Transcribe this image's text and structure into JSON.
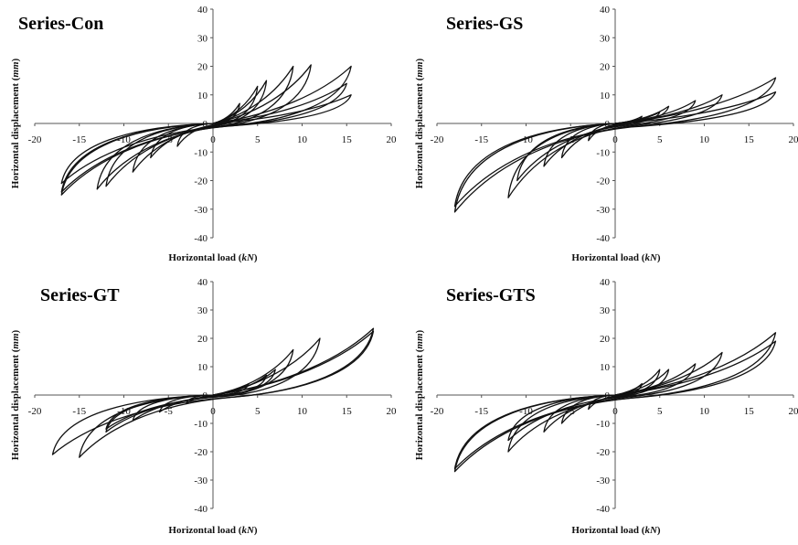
{
  "panels": [
    {
      "title": "Series-Con",
      "xlabel_main": "Horizontal load (",
      "xlabel_unit": "kN",
      "xlabel_end": ")",
      "ylabel_main": "Horizontal displacement (",
      "ylabel_unit": "mm",
      "ylabel_end": ")"
    },
    {
      "title": "Series-GS",
      "xlabel_main": "Horizontal load (",
      "xlabel_unit": "kN",
      "xlabel_end": ")",
      "ylabel_main": "Horizontal displacement (",
      "ylabel_unit": "mm",
      "ylabel_end": ")"
    },
    {
      "title": "Series-GT",
      "xlabel_main": "Horizontal load (",
      "xlabel_unit": "kN",
      "xlabel_end": ")",
      "ylabel_main": "Horizontal displacement (",
      "ylabel_unit": "mm",
      "ylabel_end": ")"
    },
    {
      "title": "Series-GTS",
      "xlabel_main": "Horizontal load (",
      "xlabel_unit": "kN",
      "xlabel_end": ")",
      "ylabel_main": "Horizontal displacement (",
      "ylabel_unit": "mm",
      "ylabel_end": ")"
    }
  ],
  "chart_data": [
    {
      "type": "line",
      "title": "Series-Con",
      "xlabel": "Horizontal load (kN)",
      "ylabel": "Horizontal displacement (mm)",
      "xlim": [
        -20,
        20
      ],
      "ylim": [
        -40,
        40
      ],
      "xticks": [
        "-20",
        "-15",
        "-10",
        "-5",
        "0",
        "5",
        "10",
        "15",
        "20"
      ],
      "yticks": [
        "-40",
        "-30",
        "-20",
        "-10",
        "0",
        "10",
        "20",
        "30",
        "40"
      ],
      "line_color": "#111111",
      "loops": [
        {
          "peak_pos": [
            3,
            7
          ],
          "peak_neg": [
            -4,
            -8
          ]
        },
        {
          "peak_pos": [
            5,
            13
          ],
          "peak_neg": [
            -7,
            -12
          ]
        },
        {
          "peak_pos": [
            6,
            15
          ],
          "peak_neg": [
            -9,
            -17
          ]
        },
        {
          "peak_pos": [
            9,
            20
          ],
          "peak_neg": [
            -12,
            -22
          ]
        },
        {
          "peak_pos": [
            11,
            20.5
          ],
          "peak_neg": [
            -13,
            -23
          ]
        },
        {
          "peak_pos": [
            15.5,
            20
          ],
          "peak_neg": [
            -17,
            -21
          ]
        },
        {
          "peak_pos": [
            15.5,
            10
          ],
          "peak_neg": [
            -17,
            -24
          ]
        },
        {
          "peak_pos": [
            15,
            14
          ],
          "peak_neg": [
            -17,
            -25
          ]
        }
      ]
    },
    {
      "type": "line",
      "title": "Series-GS",
      "xlabel": "Horizontal load (kN)",
      "ylabel": "Horizontal displacement (mm)",
      "xlim": [
        -20,
        20
      ],
      "ylim": [
        -40,
        40
      ],
      "xticks": [
        "-20",
        "-15",
        "-10",
        "-5",
        "0",
        "5",
        "10",
        "15",
        "20"
      ],
      "yticks": [
        "-40",
        "-30",
        "-20",
        "-10",
        "0",
        "10",
        "20",
        "30",
        "40"
      ],
      "line_color": "#111111",
      "loops": [
        {
          "peak_pos": [
            3,
            2.5
          ],
          "peak_neg": [
            -3,
            -6
          ]
        },
        {
          "peak_pos": [
            5,
            4
          ],
          "peak_neg": [
            -6,
            -12
          ]
        },
        {
          "peak_pos": [
            6,
            6
          ],
          "peak_neg": [
            -8,
            -15
          ]
        },
        {
          "peak_pos": [
            9,
            8
          ],
          "peak_neg": [
            -11,
            -20
          ]
        },
        {
          "peak_pos": [
            12,
            10
          ],
          "peak_neg": [
            -12,
            -26
          ]
        },
        {
          "peak_pos": [
            18,
            16
          ],
          "peak_neg": [
            -18,
            -29
          ]
        },
        {
          "peak_pos": [
            18,
            11
          ],
          "peak_neg": [
            -18,
            -31
          ]
        }
      ]
    },
    {
      "type": "line",
      "title": "Series-GT",
      "xlabel": "Horizontal load (kN)",
      "ylabel": "Horizontal displacement (mm)",
      "xlim": [
        -20,
        20
      ],
      "ylim": [
        -40,
        40
      ],
      "xticks": [
        "-20",
        "-15",
        "-10",
        "-5",
        "0",
        "5",
        "10",
        "15",
        "20"
      ],
      "yticks": [
        "-40",
        "-30",
        "-20",
        "-10",
        "0",
        "10",
        "20",
        "30",
        "40"
      ],
      "line_color": "#111111",
      "loops": [
        {
          "peak_pos": [
            4,
            4
          ],
          "peak_neg": [
            -3,
            -3
          ]
        },
        {
          "peak_pos": [
            6,
            7
          ],
          "peak_neg": [
            -6,
            -6
          ]
        },
        {
          "peak_pos": [
            7,
            9
          ],
          "peak_neg": [
            -9,
            -9
          ]
        },
        {
          "peak_pos": [
            9,
            16
          ],
          "peak_neg": [
            -12,
            -13
          ]
        },
        {
          "peak_pos": [
            12,
            20
          ],
          "peak_neg": [
            -12,
            -12
          ]
        },
        {
          "peak_pos": [
            18,
            23.5
          ],
          "peak_neg": [
            -18,
            -21
          ]
        },
        {
          "peak_pos": [
            18,
            22.5
          ],
          "peak_neg": [
            -15,
            -22
          ]
        }
      ]
    },
    {
      "type": "line",
      "title": "Series-GTS",
      "xlabel": "Horizontal load (kN)",
      "ylabel": "Horizontal displacement (mm)",
      "xlim": [
        -20,
        20
      ],
      "ylim": [
        -40,
        40
      ],
      "xticks": [
        "-20",
        "-15",
        "-10",
        "-5",
        "0",
        "5",
        "10",
        "15",
        "20"
      ],
      "yticks": [
        "-40",
        "-30",
        "-20",
        "-10",
        "0",
        "10",
        "20",
        "30",
        "40"
      ],
      "line_color": "#111111",
      "loops": [
        {
          "peak_pos": [
            3,
            4
          ],
          "peak_neg": [
            -3,
            -5
          ]
        },
        {
          "peak_pos": [
            5,
            9
          ],
          "peak_neg": [
            -6,
            -10
          ]
        },
        {
          "peak_pos": [
            6,
            9
          ],
          "peak_neg": [
            -8,
            -13
          ]
        },
        {
          "peak_pos": [
            9,
            11
          ],
          "peak_neg": [
            -12,
            -16
          ]
        },
        {
          "peak_pos": [
            12,
            15
          ],
          "peak_neg": [
            -12,
            -20
          ]
        },
        {
          "peak_pos": [
            18,
            22
          ],
          "peak_neg": [
            -18,
            -26
          ]
        },
        {
          "peak_pos": [
            18,
            19
          ],
          "peak_neg": [
            -18,
            -27
          ]
        }
      ]
    }
  ]
}
